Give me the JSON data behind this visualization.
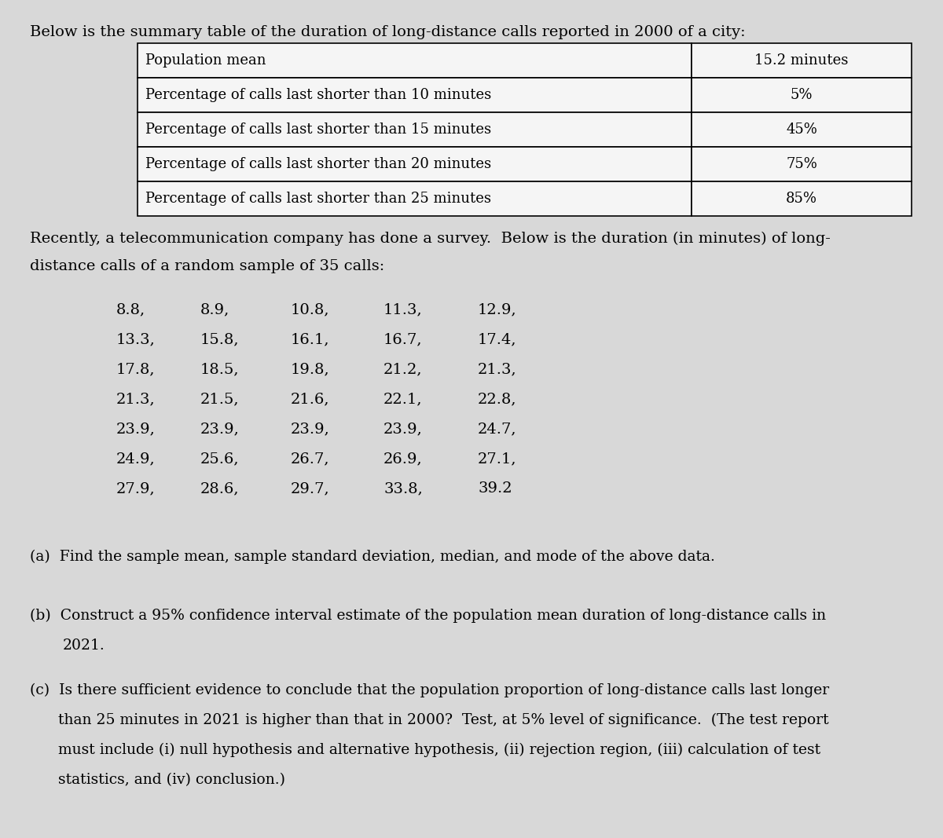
{
  "title_text": "Below is the summary table of the duration of long-distance calls reported in 2000 of a city:",
  "table_rows": [
    [
      "Population mean",
      "15.2 minutes"
    ],
    [
      "Percentage of calls last shorter than 10 minutes",
      "5%"
    ],
    [
      "Percentage of calls last shorter than 15 minutes",
      "45%"
    ],
    [
      "Percentage of calls last shorter than 20 minutes",
      "75%"
    ],
    [
      "Percentage of calls last shorter than 25 minutes",
      "85%"
    ]
  ],
  "data_rows": [
    [
      "8.8,",
      "8.9,",
      "10.8,",
      "11.3,",
      "12.9,"
    ],
    [
      "13.3,",
      "15.8,",
      "16.1,",
      "16.7,",
      "17.4,"
    ],
    [
      "17.8,",
      "18.5,",
      "19.8,",
      "21.2,",
      "21.3,"
    ],
    [
      "21.3,",
      "21.5,",
      "21.6,",
      "22.1,",
      "22.8,"
    ],
    [
      "23.9,",
      "23.9,",
      "23.9,",
      "23.9,",
      "24.7,"
    ],
    [
      "24.9,",
      "25.6,",
      "26.7,",
      "26.9,",
      "27.1,"
    ],
    [
      "27.9,",
      "28.6,",
      "29.7,",
      "33.8,",
      "39.2"
    ]
  ],
  "bg_color": "#d8d8d8",
  "table_bg": "#f5f5f5",
  "font_size_title": 14,
  "font_size_table": 13,
  "font_size_data": 14,
  "font_size_questions": 13.5,
  "fig_width": 12.0,
  "fig_height": 10.67,
  "dpi": 100
}
